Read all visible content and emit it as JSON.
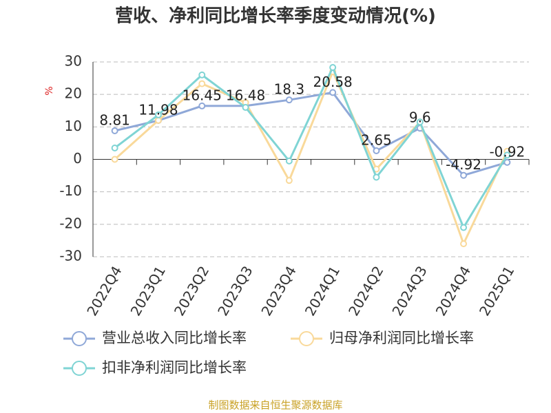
{
  "chart_data": {
    "type": "line",
    "title": "营收、净利同比增长率季度变动情况(%)",
    "y_label": "%",
    "source": "制图数据来自恒生聚源数据库",
    "categories": [
      "2022Q4",
      "2023Q1",
      "2023Q2",
      "2023Q3",
      "2023Q4",
      "2024Q1",
      "2024Q2",
      "2024Q3",
      "2024Q4",
      "2025Q1"
    ],
    "series": [
      {
        "name": "营业总收入同比增长率",
        "color": "#8fa8d8",
        "show_labels": true,
        "values": [
          8.81,
          11.98,
          16.45,
          16.48,
          18.3,
          20.58,
          2.65,
          9.6,
          -4.92,
          -0.92
        ]
      },
      {
        "name": "归母净利润同比增长率",
        "color": "#f9d99a",
        "show_labels": false,
        "values": [
          0,
          12,
          23.3,
          17.5,
          -6.5,
          27,
          -3,
          11.5,
          -26,
          2.5
        ]
      },
      {
        "name": "扣非净利润同比增长率",
        "color": "#7fd4d4",
        "show_labels": false,
        "values": [
          3.5,
          13.7,
          26,
          16,
          -0.5,
          28.3,
          -5.5,
          11.5,
          -21,
          1.3
        ]
      }
    ],
    "ylim": [
      -30,
      30
    ],
    "yticks": [
      -30,
      -20,
      -10,
      0,
      10,
      20,
      30
    ],
    "grid": true
  }
}
